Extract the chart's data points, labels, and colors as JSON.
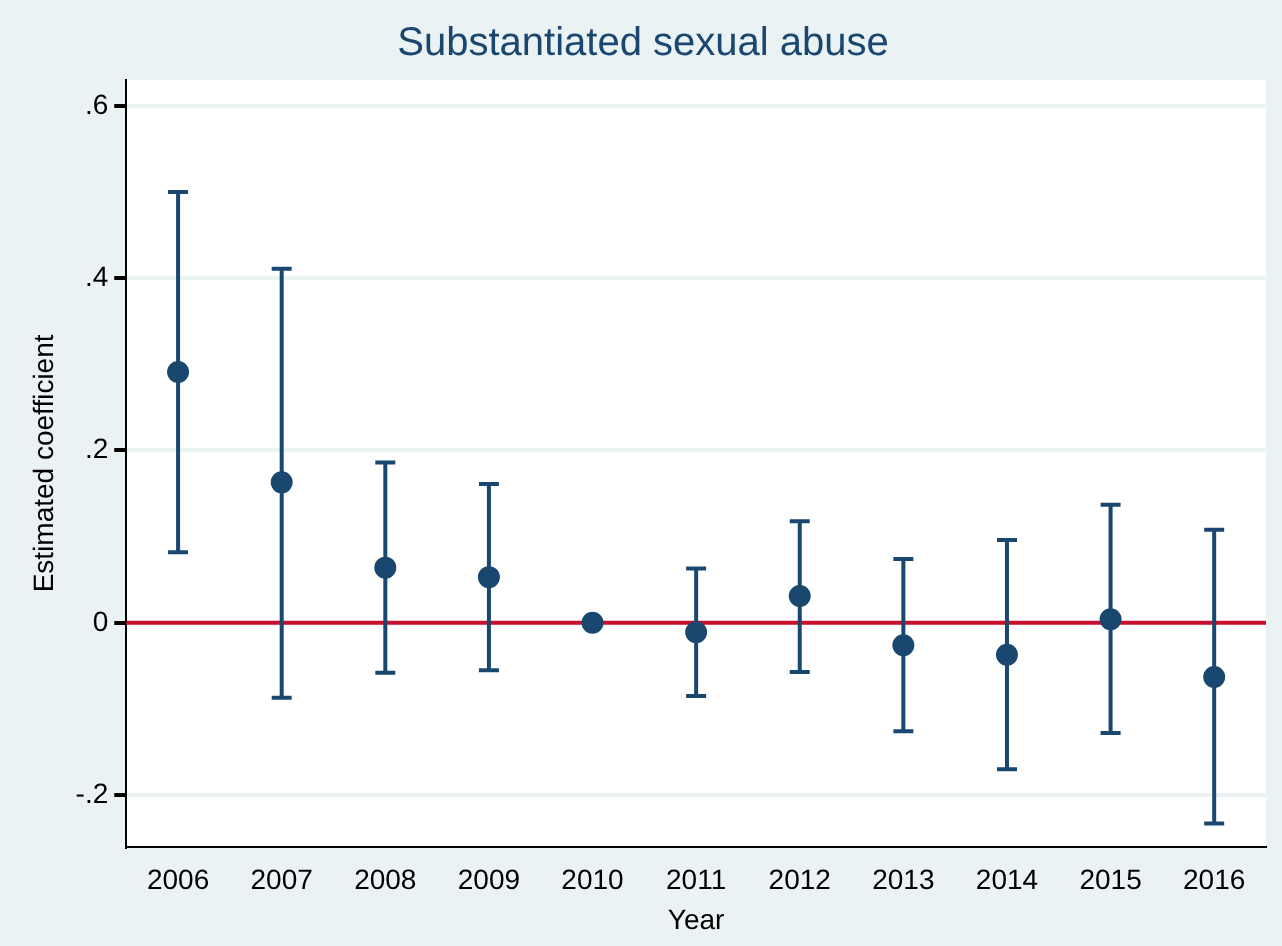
{
  "chart_data": {
    "type": "scatter",
    "title": "Substantiated sexual abuse",
    "xlabel": "Year",
    "ylabel": "Estimated coefficient",
    "categories": [
      "2006",
      "2007",
      "2008",
      "2009",
      "2010",
      "2011",
      "2012",
      "2013",
      "2014",
      "2015",
      "2016"
    ],
    "values": [
      0.291,
      0.163,
      0.064,
      0.053,
      0,
      -0.011,
      0.031,
      -0.026,
      -0.037,
      0.004,
      -0.063
    ],
    "errors": [
      [
        0.082,
        0.5
      ],
      [
        -0.087,
        0.411
      ],
      [
        -0.058,
        0.186
      ],
      [
        -0.055,
        0.161
      ],
      null,
      [
        -0.085,
        0.063
      ],
      [
        -0.057,
        0.118
      ],
      [
        -0.126,
        0.074
      ],
      [
        -0.17,
        0.096
      ],
      [
        -0.128,
        0.137
      ],
      [
        -0.233,
        0.108
      ]
    ],
    "color": "#1a476f",
    "marker": "circle",
    "ylim": [
      -0.26,
      0.63
    ],
    "yticks": [
      {
        "value": -0.2,
        "label": "-.2"
      },
      {
        "value": 0,
        "label": "0"
      },
      {
        "value": 0.2,
        "label": ".2"
      },
      {
        "value": 0.4,
        "label": ".4"
      },
      {
        "value": 0.6,
        "label": ".6"
      }
    ],
    "grid": "y",
    "legend": false,
    "ref_lines": [
      {
        "axis": "y",
        "value": 0,
        "color": "#c8102e"
      }
    ]
  }
}
